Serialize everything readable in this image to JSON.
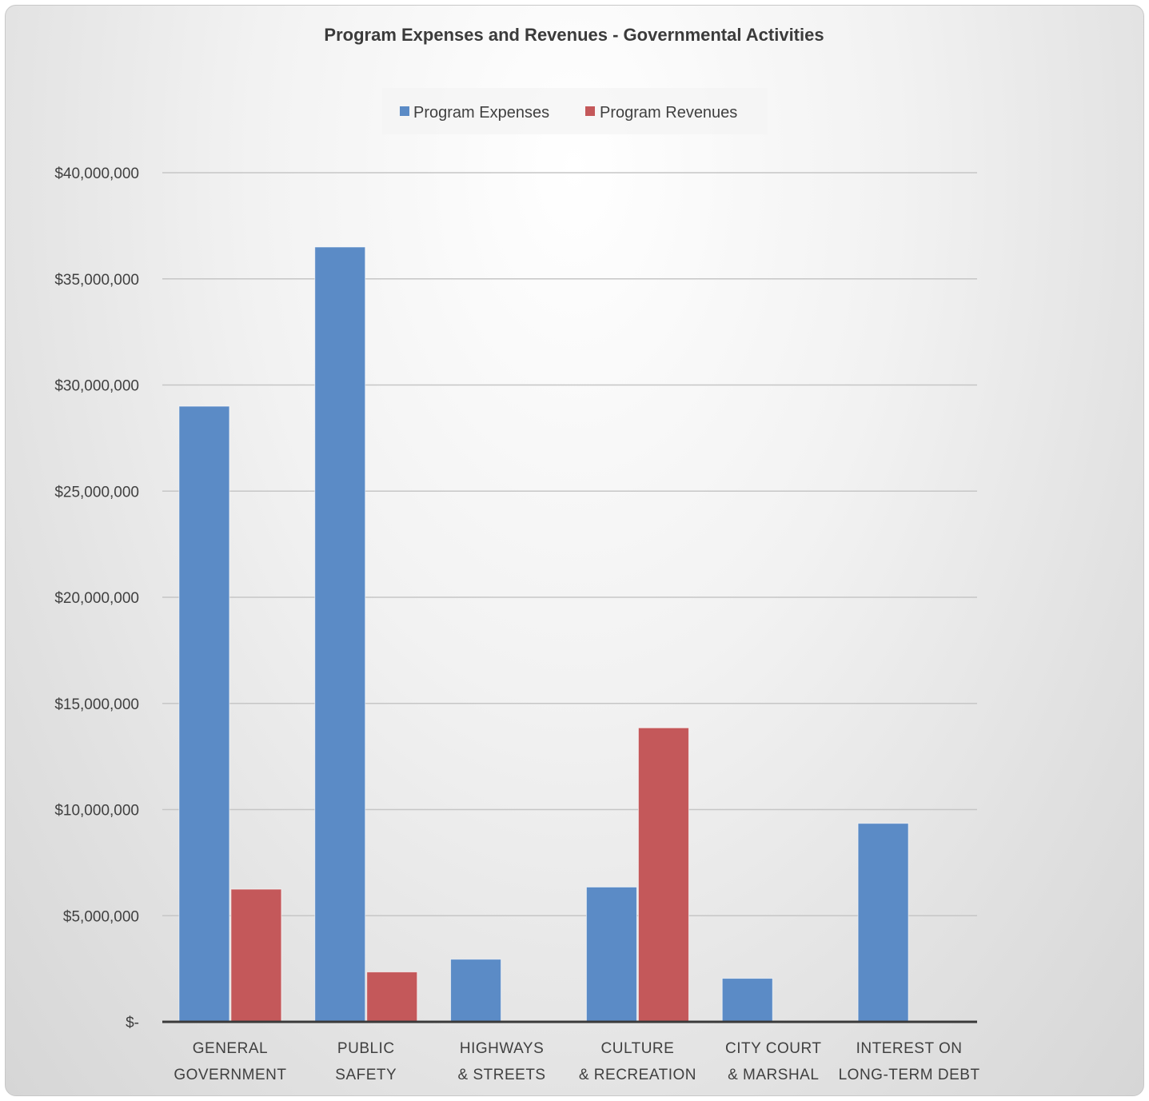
{
  "chart_data": {
    "type": "bar",
    "title": "Program Expenses and Revenues - Governmental Activities",
    "categories": [
      [
        "GENERAL",
        "GOVERNMENT"
      ],
      [
        "PUBLIC",
        "SAFETY"
      ],
      [
        "HIGHWAYS",
        "& STREETS"
      ],
      [
        "CULTURE",
        "& RECREATION"
      ],
      [
        "CITY COURT",
        "& MARSHAL"
      ],
      [
        "INTEREST ON",
        "LONG-TERM DEBT"
      ]
    ],
    "series": [
      {
        "name": "Program Expenses",
        "color": "#5b8bc6",
        "values": [
          29000000,
          36500000,
          2950000,
          6350000,
          2050000,
          9350000
        ]
      },
      {
        "name": "Program Revenues",
        "color": "#c4585a",
        "values": [
          6250000,
          2350000,
          0,
          13850000,
          0,
          0
        ]
      }
    ],
    "ylim": [
      0,
      40000000
    ],
    "yticks": [
      0,
      5000000,
      10000000,
      15000000,
      20000000,
      25000000,
      30000000,
      35000000,
      40000000
    ],
    "ytick_labels": [
      "$-",
      "$5,000,000",
      "$10,000,000",
      "$15,000,000",
      "$20,000,000",
      "$25,000,000",
      "$30,000,000",
      "$35,000,000",
      "$40,000,000"
    ],
    "legend_position": "top",
    "grid": true
  }
}
